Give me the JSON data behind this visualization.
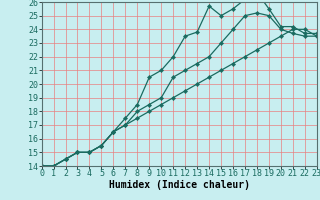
{
  "title": "",
  "xlabel": "Humidex (Indice chaleur)",
  "ylabel": "",
  "bg_color": "#c8eef0",
  "line_color": "#1a6b60",
  "grid_color": "#e88080",
  "xmin": 0,
  "xmax": 23,
  "ymin": 14,
  "ymax": 26,
  "line1_x": [
    0,
    1,
    2,
    3,
    4,
    5,
    6,
    7,
    8,
    9,
    10,
    11,
    12,
    13,
    14,
    15,
    16,
    17,
    18,
    19,
    20,
    21,
    22,
    23
  ],
  "line1_y": [
    14,
    14,
    14.5,
    15,
    15,
    15.5,
    16.5,
    17.5,
    18.5,
    20.5,
    21,
    22,
    23.5,
    23.8,
    25.7,
    25.0,
    25.5,
    26.2,
    26.7,
    25.5,
    24.2,
    24.2,
    23.7,
    23.7
  ],
  "line2_x": [
    0,
    1,
    2,
    3,
    4,
    5,
    6,
    7,
    8,
    9,
    10,
    11,
    12,
    13,
    14,
    15,
    16,
    17,
    18,
    19,
    20,
    21,
    22,
    23
  ],
  "line2_y": [
    14,
    14,
    14.5,
    15,
    15,
    15.5,
    16.5,
    17,
    18,
    18.5,
    19,
    20.5,
    21,
    21.5,
    22,
    23,
    24,
    25,
    25.2,
    25,
    24,
    23.7,
    23.5,
    23.5
  ],
  "line3_x": [
    0,
    1,
    2,
    3,
    4,
    5,
    6,
    7,
    8,
    9,
    10,
    11,
    12,
    13,
    14,
    15,
    16,
    17,
    18,
    19,
    20,
    21,
    22,
    23
  ],
  "line3_y": [
    14,
    14,
    14.5,
    15,
    15,
    15.5,
    16.5,
    17,
    17.5,
    18,
    18.5,
    19,
    19.5,
    20,
    20.5,
    21,
    21.5,
    22,
    22.5,
    23,
    23.5,
    24,
    24,
    23.5
  ],
  "marker": "D",
  "marker_size": 2.2,
  "linewidth": 0.9,
  "xlabel_fontsize": 7,
  "tick_fontsize": 6
}
